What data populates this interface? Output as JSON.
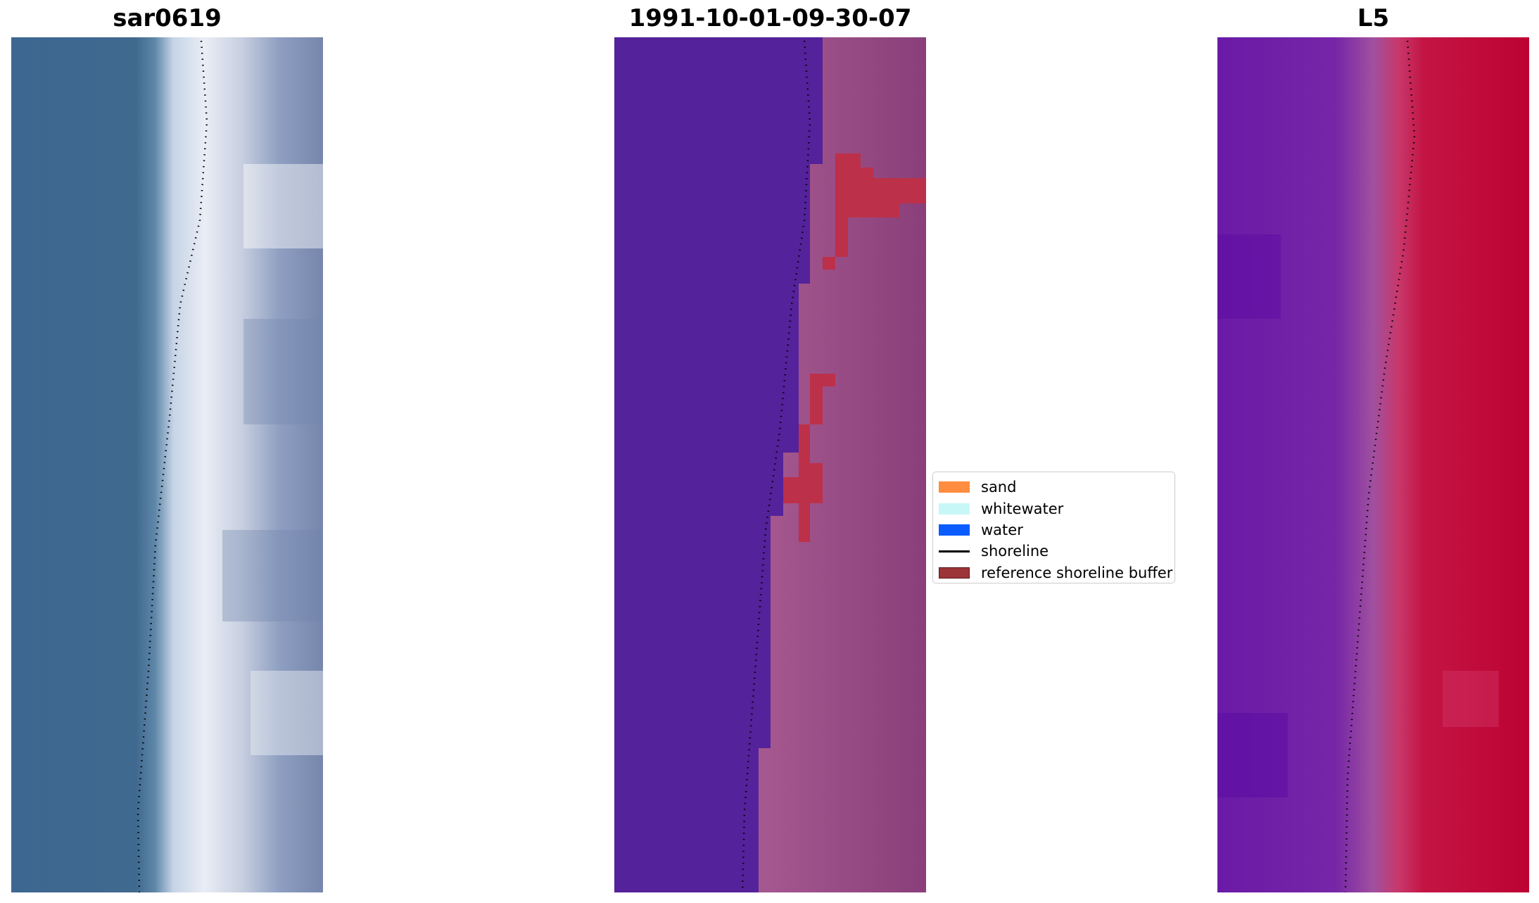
{
  "panels": [
    {
      "title": "sar0619",
      "kind": "rgb-image"
    },
    {
      "title": "1991-10-01-09-30-07",
      "kind": "classified-image"
    },
    {
      "title": "L5",
      "kind": "index-image"
    }
  ],
  "legend": {
    "items": [
      {
        "label": "sand",
        "color": "#ff8c3f",
        "icon": "patch"
      },
      {
        "label": "whitewater",
        "color": "#c8f7f7",
        "icon": "patch"
      },
      {
        "label": "water",
        "color": "#0a5cff",
        "icon": "patch"
      },
      {
        "label": "shoreline",
        "color": "#000000",
        "icon": "line"
      },
      {
        "label": "reference shoreline buffer",
        "color": "#9c3538",
        "icon": "patch"
      }
    ]
  },
  "colors": {
    "ocean_rgb": "#3e6891",
    "surf_rgb": "#e8ecf4",
    "water_class": "#54229a",
    "land_class": "#b05e98",
    "buffer": "#bd3049",
    "index_low": "#6a1aa6",
    "index_high": "#c2002e"
  }
}
